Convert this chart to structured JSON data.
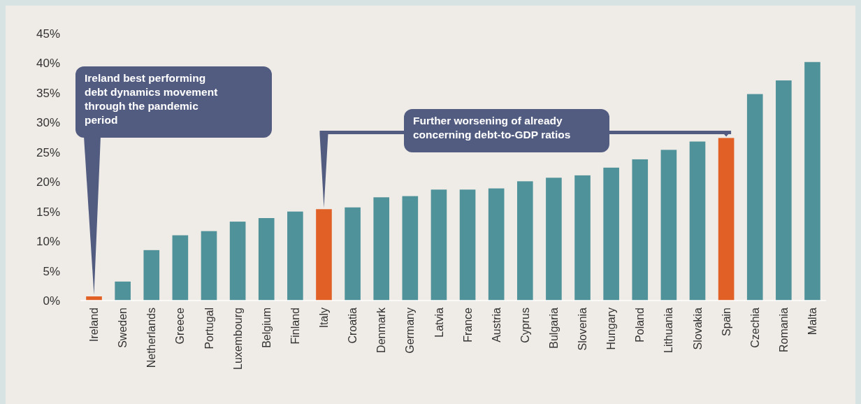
{
  "chart_data": {
    "type": "bar",
    "categories": [
      "Ireland",
      "Sweden",
      "Netherlands",
      "Greece",
      "Portugal",
      "Luxembourg",
      "Belgium",
      "Finland",
      "Italy",
      "Croatia",
      "Denmark",
      "Germany",
      "Latvia",
      "France",
      "Austria",
      "Cyprus",
      "Bulgaria",
      "Slovenia",
      "Hungary",
      "Poland",
      "Lithuania",
      "Slovakia",
      "Spain",
      "Czechia",
      "Romania",
      "Malta"
    ],
    "values": [
      0.7,
      3.2,
      8.5,
      11.0,
      11.7,
      13.3,
      13.9,
      15.0,
      15.4,
      15.7,
      17.4,
      17.6,
      18.7,
      18.7,
      18.9,
      20.1,
      20.7,
      21.1,
      22.4,
      23.8,
      25.4,
      26.8,
      27.4,
      34.8,
      37.1,
      40.2
    ],
    "colors": [
      "#e06025",
      "#4f929a",
      "#4f929a",
      "#4f929a",
      "#4f929a",
      "#4f929a",
      "#4f929a",
      "#4f929a",
      "#e06025",
      "#4f929a",
      "#4f929a",
      "#4f929a",
      "#4f929a",
      "#4f929a",
      "#4f929a",
      "#4f929a",
      "#4f929a",
      "#4f929a",
      "#4f929a",
      "#4f929a",
      "#4f929a",
      "#4f929a",
      "#e06025",
      "#4f929a",
      "#4f929a",
      "#4f929a"
    ],
    "ylim": [
      0,
      45
    ],
    "yticks": [
      {
        "value": 0,
        "label": "0%"
      },
      {
        "value": 5,
        "label": "5%"
      },
      {
        "value": 10,
        "label": "10%"
      },
      {
        "value": 15,
        "label": "15%"
      },
      {
        "value": 20,
        "label": "20%"
      },
      {
        "value": 25,
        "label": "25%"
      },
      {
        "value": 30,
        "label": "30%"
      },
      {
        "value": 35,
        "label": "35%"
      },
      {
        "value": 40,
        "label": "40%"
      },
      {
        "value": 45,
        "label": "45%"
      }
    ],
    "grid": false,
    "annotations": [
      {
        "text": "Ireland best performing debt dynamics movement through the pandemic period",
        "x": "Ireland",
        "y": 0.7
      },
      "Further worsening of already concerning debt-to-GDP ratios"
    ]
  }
}
